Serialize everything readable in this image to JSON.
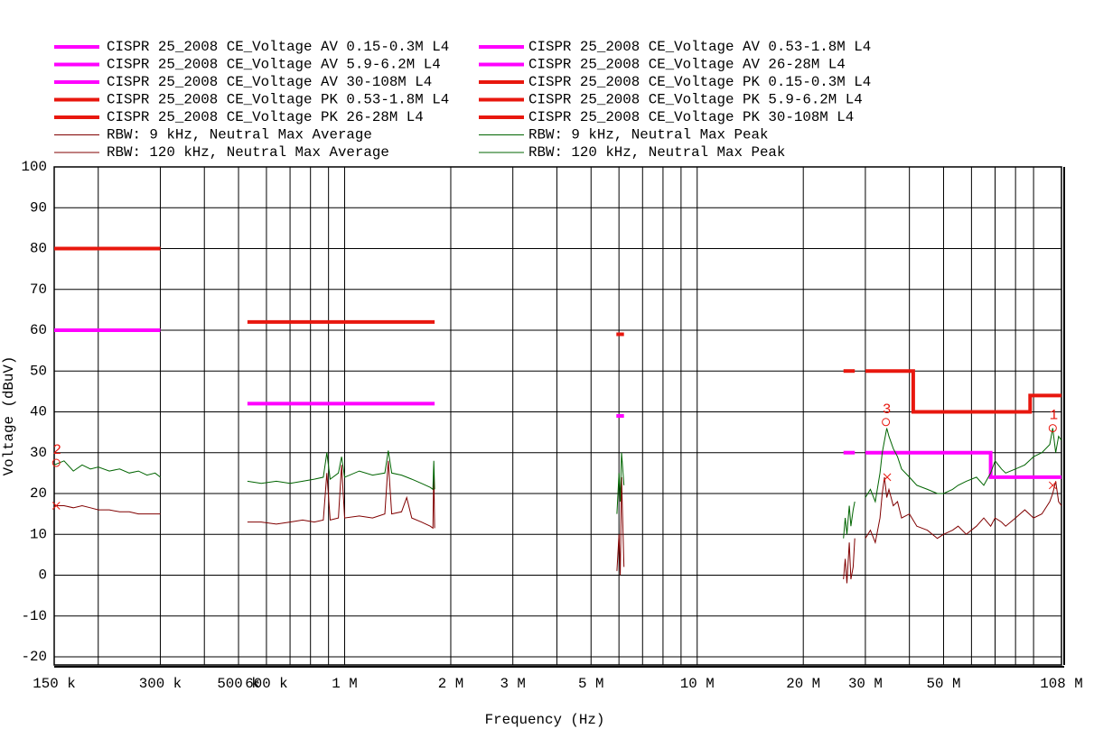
{
  "chart_data": {
    "type": "line",
    "x_label": "Frequency (Hz)",
    "y_label": "Voltage (dBuV)",
    "xscale": "log",
    "grid": true,
    "xlim": [
      150000,
      108000000
    ],
    "ylim": [
      -22,
      100
    ],
    "xticks": [
      {
        "value": 150000,
        "label": "150 k"
      },
      {
        "value": 300000,
        "label": "300 k"
      },
      {
        "value": 500000,
        "label": "500 k"
      },
      {
        "value": 600000,
        "label": "600 k"
      },
      {
        "value": 1000000,
        "label": "1 M"
      },
      {
        "value": 2000000,
        "label": "2 M"
      },
      {
        "value": 3000000,
        "label": "3 M"
      },
      {
        "value": 5000000,
        "label": "5 M"
      },
      {
        "value": 10000000,
        "label": "10 M"
      },
      {
        "value": 20000000,
        "label": "20 M"
      },
      {
        "value": 30000000,
        "label": "30 M"
      },
      {
        "value": 50000000,
        "label": "50 M"
      },
      {
        "value": 108000000,
        "label": "108 M"
      }
    ],
    "xminorticks": [
      200000,
      400000,
      700000,
      800000,
      900000,
      4000000,
      6000000,
      7000000,
      8000000,
      9000000,
      40000000,
      60000000,
      70000000,
      80000000,
      90000000
    ],
    "yticks": [
      -20,
      -10,
      0,
      10,
      20,
      30,
      40,
      50,
      60,
      70,
      80,
      90,
      100
    ],
    "series": [
      {
        "name": "CISPR 25_2008 CE_Voltage AV 0.15-0.3M L4",
        "color": "#ff00ff",
        "line_width": 4,
        "x": [
          150000,
          300000
        ],
        "values": [
          60,
          60
        ]
      },
      {
        "name": "CISPR 25_2008 CE_Voltage AV 0.53-1.8M L4",
        "color": "#ff00ff",
        "line_width": 4,
        "x": [
          530000,
          1800000
        ],
        "values": [
          42,
          42
        ]
      },
      {
        "name": "CISPR 25_2008 CE_Voltage AV 5.9-6.2M L4",
        "color": "#ff00ff",
        "line_width": 4,
        "x": [
          5900000,
          6200000
        ],
        "values": [
          39,
          39
        ]
      },
      {
        "name": "CISPR 25_2008 CE_Voltage AV 26-28M L4",
        "color": "#ff00ff",
        "line_width": 4,
        "x": [
          26000000,
          28000000
        ],
        "values": [
          30,
          30
        ]
      },
      {
        "name": "CISPR 25_2008 CE_Voltage AV 30-108M L4",
        "color": "#ff00ff",
        "line_width": 4,
        "x": [
          30000000,
          68000000,
          68000000,
          108000000
        ],
        "values": [
          30,
          30,
          24,
          24
        ]
      },
      {
        "name": "CISPR 25_2008 CE_Voltage PK 0.15-0.3M L4",
        "color": "#e8170e",
        "line_width": 4,
        "x": [
          150000,
          300000
        ],
        "values": [
          80,
          80
        ]
      },
      {
        "name": "CISPR 25_2008 CE_Voltage PK 0.53-1.8M L4",
        "color": "#e8170e",
        "line_width": 4,
        "x": [
          530000,
          1800000
        ],
        "values": [
          62,
          62
        ]
      },
      {
        "name": "CISPR 25_2008 CE_Voltage PK 5.9-6.2M L4",
        "color": "#e8170e",
        "line_width": 4,
        "x": [
          5900000,
          6200000
        ],
        "values": [
          59,
          59
        ]
      },
      {
        "name": "CISPR 25_2008 CE_Voltage PK 26-28M L4",
        "color": "#e8170e",
        "line_width": 4,
        "x": [
          26000000,
          28000000
        ],
        "values": [
          50,
          50
        ]
      },
      {
        "name": "CISPR 25_2008 CE_Voltage PK 30-108M L4",
        "color": "#e8170e",
        "line_width": 4,
        "x": [
          30000000,
          41000000,
          41000000,
          88000000,
          88000000,
          108000000
        ],
        "values": [
          50,
          50,
          40,
          40,
          44,
          44
        ]
      },
      {
        "name": "RBW: 9 kHz, Neutral Max Average",
        "color": "#800000",
        "line_width": 1,
        "x": [
          150000,
          160000,
          170000,
          180000,
          190000,
          200000,
          215000,
          230000,
          245000,
          260000,
          275000,
          290000,
          300000,
          null,
          530000,
          580000,
          640000,
          700000,
          760000,
          820000,
          870000,
          890000,
          910000,
          960000,
          980000,
          1000000,
          1100000,
          1200000,
          1300000,
          1330000,
          1360000,
          1450000,
          1500000,
          1550000,
          1650000,
          1750000,
          1780000,
          1790000,
          1800000,
          null,
          5920000,
          6000000,
          6050000,
          6100000,
          6200000,
          null,
          26000000,
          26300000,
          26600000,
          27000000,
          27300000,
          27700000,
          28000000
        ],
        "values": [
          17,
          17,
          16.5,
          17,
          16.5,
          16,
          16,
          15.5,
          15.5,
          15,
          15,
          15,
          15,
          null,
          13,
          13,
          12.5,
          13,
          13.5,
          13,
          13.5,
          25,
          13.5,
          14,
          27,
          14,
          14.5,
          14,
          15,
          28,
          15,
          15.5,
          19,
          14,
          13,
          12,
          11.5,
          26,
          11.5,
          null,
          1,
          10,
          0,
          24,
          2,
          null,
          -1,
          4,
          -2,
          8,
          -1,
          2,
          9
        ]
      },
      {
        "name": "RBW: 9 kHz, Neutral Max Peak",
        "color": "#006400",
        "line_width": 1,
        "x": [
          150000,
          160000,
          170000,
          180000,
          190000,
          200000,
          215000,
          230000,
          245000,
          260000,
          275000,
          290000,
          300000,
          null,
          530000,
          580000,
          640000,
          700000,
          760000,
          820000,
          870000,
          890000,
          910000,
          960000,
          980000,
          1000000,
          1100000,
          1200000,
          1300000,
          1330000,
          1360000,
          1450000,
          1500000,
          1550000,
          1650000,
          1750000,
          1780000,
          1790000,
          1800000,
          null,
          5920000,
          6000000,
          6050000,
          6100000,
          6200000,
          null,
          26000000,
          26300000,
          26600000,
          27000000,
          27300000,
          27700000,
          28000000
        ],
        "values": [
          27,
          28,
          25.5,
          27,
          26,
          26.5,
          25.5,
          26,
          25,
          25.5,
          24.5,
          25,
          24,
          null,
          23,
          22.5,
          23,
          22.5,
          23,
          23.5,
          24,
          30,
          23.5,
          25,
          29,
          24,
          25.5,
          24.5,
          25,
          30.5,
          25,
          24.5,
          24,
          23.5,
          22.5,
          21.5,
          21,
          28,
          21,
          null,
          15,
          25,
          18,
          30,
          22,
          null,
          9,
          14,
          10,
          17,
          12,
          16,
          18
        ]
      },
      {
        "name": "RBW: 120 kHz, Neutral Max Average",
        "color": "#800000",
        "line_width": 1,
        "x": [
          30000000,
          31000000,
          32000000,
          33000000,
          33500000,
          34000000,
          34500000,
          35000000,
          36000000,
          37000000,
          38000000,
          40000000,
          42000000,
          45000000,
          48000000,
          50000000,
          53000000,
          55000000,
          58000000,
          62000000,
          65000000,
          68000000,
          70000000,
          73000000,
          75000000,
          80000000,
          85000000,
          90000000,
          95000000,
          100000000,
          102000000,
          104000000,
          106000000,
          108000000
        ],
        "values": [
          9,
          11,
          8,
          14,
          20,
          24,
          19,
          21,
          17,
          18,
          14,
          15,
          12,
          11,
          9,
          10,
          11,
          12,
          10,
          12,
          14,
          12,
          14,
          13,
          12,
          14,
          16,
          14,
          15,
          18,
          20,
          23,
          18,
          17
        ]
      },
      {
        "name": "RBW: 120 kHz, Neutral Max Peak",
        "color": "#006400",
        "line_width": 1,
        "x": [
          30000000,
          31000000,
          32000000,
          33000000,
          33500000,
          34000000,
          34500000,
          35000000,
          36000000,
          37000000,
          38000000,
          40000000,
          42000000,
          45000000,
          48000000,
          50000000,
          53000000,
          55000000,
          58000000,
          62000000,
          65000000,
          68000000,
          70000000,
          73000000,
          75000000,
          80000000,
          85000000,
          90000000,
          95000000,
          100000000,
          102000000,
          104000000,
          106000000,
          108000000
        ],
        "values": [
          19,
          21,
          18,
          25,
          30,
          33,
          36,
          34,
          31,
          29,
          26,
          24,
          22,
          21,
          20,
          20,
          21,
          22,
          23,
          24,
          22,
          25,
          28,
          26,
          25,
          26,
          27,
          29,
          30,
          32,
          36,
          30,
          34,
          33
        ]
      }
    ],
    "markers": [
      {
        "label": "1",
        "x": 102000000,
        "y": 36
      },
      {
        "label": "2",
        "x": 152000,
        "y": 27.5
      },
      {
        "label": "3",
        "x": 34300000,
        "y": 37.5
      }
    ],
    "cross_markers": [
      {
        "x": 34600000,
        "y": 24
      },
      {
        "x": 102000000,
        "y": 22
      },
      {
        "x": 152000,
        "y": 17
      }
    ]
  }
}
